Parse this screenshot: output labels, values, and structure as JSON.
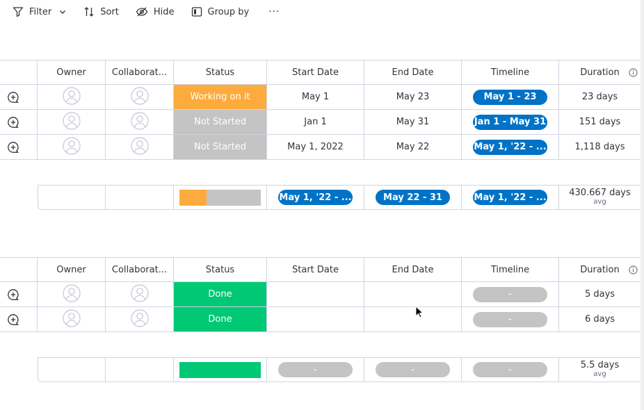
{
  "toolbar": {
    "filter": "Filter",
    "sort": "Sort",
    "hide": "Hide",
    "group_by": "Group by",
    "more": "···"
  },
  "columns": {
    "owner": "Owner",
    "collaborators": "Collaborat...",
    "status": "Status",
    "start_date": "Start Date",
    "end_date": "End Date",
    "timeline": "Timeline",
    "duration": "Duration"
  },
  "colors": {
    "working": "#fdab3d",
    "not_started": "#c4c4c4",
    "done": "#00c875",
    "timeline_blue": "#0073c7",
    "empty_pill": "#c4c4c4"
  },
  "group1": {
    "rows": [
      {
        "status": "Working on it",
        "status_color": "#fdab3d",
        "start": "May 1",
        "end": "May 23",
        "timeline": "May 1 - 23",
        "duration": "23 days"
      },
      {
        "status": "Not Started",
        "status_color": "#c4c4c4",
        "start": "Jan 1",
        "end": "May 31",
        "timeline": "Jan 1 - May 31",
        "duration": "151 days"
      },
      {
        "status": "Not Started",
        "status_color": "#c4c4c4",
        "start": "May 1, 2022",
        "end": "May 22",
        "timeline": "May 1, '22 - ...",
        "duration": "1,118 days"
      }
    ],
    "summary": {
      "status_bar": [
        {
          "color": "#fdab3d",
          "fraction": 0.333
        },
        {
          "color": "#c4c4c4",
          "fraction": 0.667
        }
      ],
      "start": "May 1, '22 - ...",
      "end": "May 22 - 31",
      "timeline": "May 1, '22 - ...",
      "duration": "430.667 days",
      "duration_label": "avg"
    }
  },
  "group2": {
    "rows": [
      {
        "status": "Done",
        "status_color": "#00c875",
        "start": "",
        "end": "",
        "timeline": "-",
        "duration": "5 days"
      },
      {
        "status": "Done",
        "status_color": "#00c875",
        "start": "",
        "end": "",
        "timeline": "-",
        "duration": "6 days"
      }
    ],
    "summary": {
      "status_bar": [
        {
          "color": "#00c875",
          "fraction": 1.0
        }
      ],
      "start": "-",
      "end": "-",
      "timeline": "-",
      "duration": "5.5 days",
      "duration_label": "avg"
    }
  }
}
